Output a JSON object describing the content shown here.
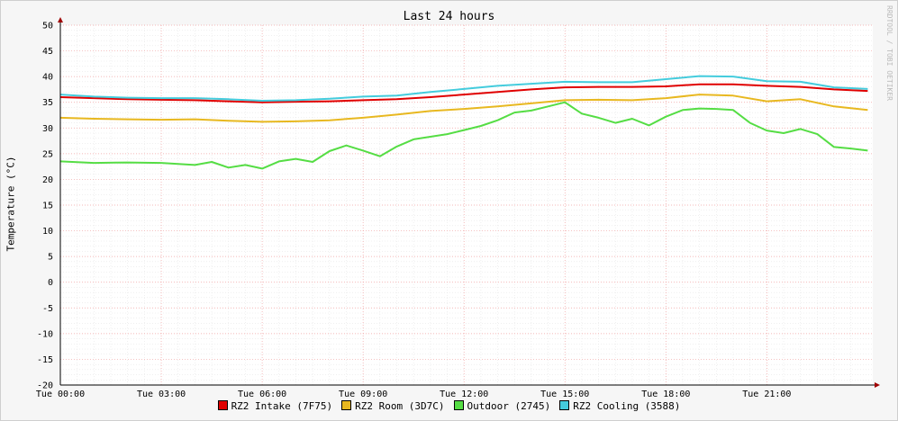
{
  "chart_data": {
    "type": "line",
    "title": "Last 24 hours",
    "ylabel": "Temperature (°C)",
    "xlabel": "",
    "watermark": "RRDTOOL / TOBI OETIKER",
    "ylim": [
      -20,
      50
    ],
    "yticks": [
      50,
      45,
      40,
      35,
      30,
      25,
      20,
      15,
      10,
      5,
      0,
      -5,
      -10,
      -15,
      -20
    ],
    "xlim": [
      0,
      24.15
    ],
    "xticks": [
      {
        "x": 0,
        "label": "Tue 00:00"
      },
      {
        "x": 3,
        "label": "Tue 03:00"
      },
      {
        "x": 6,
        "label": "Tue 06:00"
      },
      {
        "x": 9,
        "label": "Tue 09:00"
      },
      {
        "x": 12,
        "label": "Tue 12:00"
      },
      {
        "x": 15,
        "label": "Tue 15:00"
      },
      {
        "x": 18,
        "label": "Tue 18:00"
      },
      {
        "x": 21,
        "label": "Tue 21:00"
      }
    ],
    "grid": true,
    "legend_position": "bottom",
    "series": [
      {
        "name": "RZ2 Intake (7F75)",
        "color": "#e00000",
        "x": [
          0,
          1,
          2,
          3,
          4,
          5,
          6,
          7,
          8,
          9,
          10,
          11,
          12,
          13,
          14,
          15,
          16,
          17,
          18,
          19,
          20,
          21,
          22,
          23,
          24
        ],
        "y": [
          36,
          35.8,
          35.6,
          35.5,
          35.4,
          35.2,
          35.0,
          35.1,
          35.2,
          35.4,
          35.6,
          36.0,
          36.5,
          37.0,
          37.5,
          37.9,
          38.0,
          38.0,
          38.1,
          38.5,
          38.5,
          38.2,
          38.0,
          37.5,
          37.2
        ]
      },
      {
        "name": "RZ2 Room (3D7C)",
        "color": "#e8b820",
        "x": [
          0,
          1,
          2,
          3,
          4,
          5,
          6,
          7,
          8,
          9,
          10,
          11,
          12,
          13,
          14,
          15,
          16,
          17,
          18,
          19,
          20,
          21,
          22,
          23,
          24
        ],
        "y": [
          32,
          31.8,
          31.7,
          31.6,
          31.7,
          31.4,
          31.2,
          31.3,
          31.5,
          32,
          32.6,
          33.3,
          33.7,
          34.2,
          34.8,
          35.4,
          35.5,
          35.4,
          35.8,
          36.5,
          36.3,
          35.2,
          35.6,
          34.2,
          33.5
        ]
      },
      {
        "name": "Outdoor (2745)",
        "color": "#55dd44",
        "x": [
          0,
          1,
          2,
          3,
          4,
          4.5,
          5,
          5.5,
          6,
          6.5,
          7,
          7.5,
          8,
          8.5,
          9,
          9.5,
          10,
          10.5,
          11,
          11.5,
          12,
          12.5,
          13,
          13.5,
          14,
          14.5,
          15,
          15.5,
          16,
          16.5,
          17,
          17.5,
          18,
          18.5,
          19,
          19.5,
          20,
          20.5,
          21,
          21.5,
          22,
          22.5,
          23,
          23.5,
          24
        ],
        "y": [
          23.5,
          23.2,
          23.3,
          23.2,
          22.8,
          23.4,
          22.3,
          22.8,
          22.1,
          23.5,
          24.0,
          23.4,
          25.5,
          26.6,
          25.6,
          24.5,
          26.4,
          27.8,
          28.3,
          28.8,
          29.6,
          30.4,
          31.5,
          33.0,
          33.4,
          34.2,
          35.0,
          32.8,
          32.0,
          31.0,
          31.8,
          30.5,
          32.2,
          33.5,
          33.8,
          33.7,
          33.5,
          31.0,
          29.5,
          29.0,
          29.8,
          28.8,
          26.3,
          26.0,
          25.6
        ]
      },
      {
        "name": "RZ2 Cooling (3588)",
        "color": "#44ccdd",
        "x": [
          0,
          1,
          2,
          3,
          4,
          5,
          6,
          7,
          8,
          9,
          10,
          11,
          12,
          13,
          14,
          15,
          16,
          17,
          18,
          19,
          20,
          21,
          22,
          23,
          24
        ],
        "y": [
          36.5,
          36.1,
          35.9,
          35.8,
          35.8,
          35.6,
          35.3,
          35.4,
          35.7,
          36.1,
          36.3,
          37.0,
          37.6,
          38.2,
          38.6,
          39.0,
          38.9,
          38.9,
          39.5,
          40.1,
          40.0,
          39.1,
          39.0,
          37.9,
          37.6
        ]
      }
    ]
  }
}
